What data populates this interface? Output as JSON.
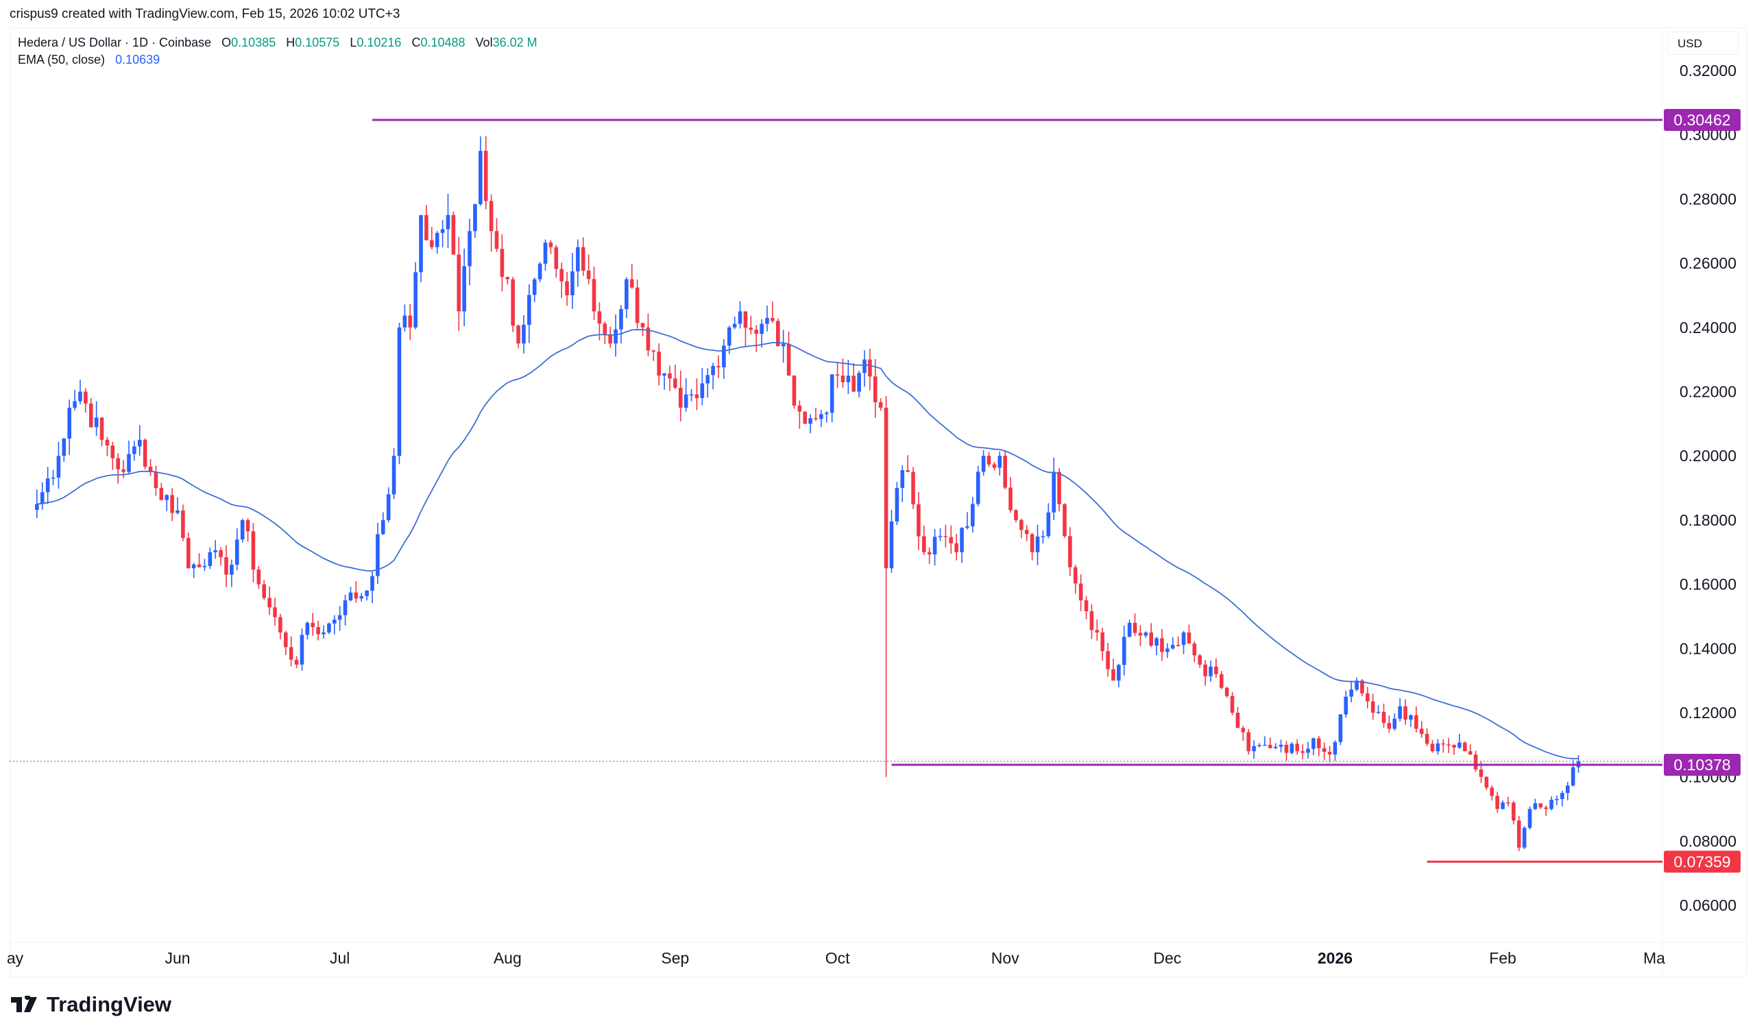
{
  "credit": "crispus9 created with TradingView.com, Feb 15, 2026 10:02 UTC+3",
  "legend": {
    "symbol": "Hedera / US Dollar · 1D · Coinbase",
    "o_label": "O",
    "o": "0.10385",
    "h_label": "H",
    "h": "0.10575",
    "l_label": "L",
    "l": "0.10216",
    "c_label": "C",
    "c": "0.10488",
    "vol_label": "Vol",
    "vol": "36.02 M",
    "ema_label": "EMA (50, close)",
    "ema": "0.10639"
  },
  "currency": "USD",
  "brand": "TradingView",
  "colors": {
    "up": "#2962ff",
    "down": "#f23645",
    "ema": "#3d6fd6",
    "level": "#9c27b0",
    "support": "#f23645"
  },
  "chart_data": {
    "type": "candlestick",
    "title": "Hedera / US Dollar · 1D · Coinbase",
    "ylim": [
      0.045,
      0.33
    ],
    "y_ticks": [
      "0.32000",
      "0.30000",
      "0.28000",
      "0.26000",
      "0.24000",
      "0.22000",
      "0.20000",
      "0.18000",
      "0.16000",
      "0.14000",
      "0.12000",
      "0.10000",
      "0.08000",
      "0.06000"
    ],
    "x_ticks": [
      {
        "label": "ay",
        "date": "2025-05-01"
      },
      {
        "label": "Jun",
        "date": "2025-06-01"
      },
      {
        "label": "Jul",
        "date": "2025-07-01"
      },
      {
        "label": "Aug",
        "date": "2025-08-01"
      },
      {
        "label": "Sep",
        "date": "2025-09-01"
      },
      {
        "label": "Oct",
        "date": "2025-10-01"
      },
      {
        "label": "Nov",
        "date": "2025-11-01"
      },
      {
        "label": "Dec",
        "date": "2025-12-01"
      },
      {
        "label": "2026",
        "date": "2026-01-01",
        "bold": true
      },
      {
        "label": "Feb",
        "date": "2026-02-01"
      },
      {
        "label": "Ma",
        "date": "2026-03-01"
      }
    ],
    "levels": [
      {
        "label": "0.30462",
        "value": 0.30462,
        "from": "2025-07-07",
        "color": "#9c27b0"
      },
      {
        "label": "0.10378",
        "value": 0.10378,
        "from": "2025-10-11",
        "color": "#9c27b0"
      },
      {
        "label": "0.07359",
        "value": 0.07359,
        "from": "2026-01-18",
        "color": "#f23645"
      }
    ],
    "current_price": 0.10488,
    "crash_low": {
      "date": "2025-10-10",
      "value": 0.1
    },
    "close_keypoints": [
      [
        "2025-05-06",
        0.185
      ],
      [
        "2025-05-10",
        0.2
      ],
      [
        "2025-05-12",
        0.215
      ],
      [
        "2025-05-14",
        0.22
      ],
      [
        "2025-05-18",
        0.205
      ],
      [
        "2025-05-22",
        0.195
      ],
      [
        "2025-05-25",
        0.205
      ],
      [
        "2025-05-28",
        0.19
      ],
      [
        "2025-06-01",
        0.183
      ],
      [
        "2025-06-03",
        0.165
      ],
      [
        "2025-06-07",
        0.17
      ],
      [
        "2025-06-10",
        0.163
      ],
      [
        "2025-06-13",
        0.18
      ],
      [
        "2025-06-16",
        0.16
      ],
      [
        "2025-06-20",
        0.145
      ],
      [
        "2025-06-23",
        0.135
      ],
      [
        "2025-06-25",
        0.148
      ],
      [
        "2025-06-28",
        0.145
      ],
      [
        "2025-07-02",
        0.155
      ],
      [
        "2025-07-06",
        0.158
      ],
      [
        "2025-07-09",
        0.18
      ],
      [
        "2025-07-11",
        0.2
      ],
      [
        "2025-07-12",
        0.24
      ],
      [
        "2025-07-14",
        0.24
      ],
      [
        "2025-07-16",
        0.275
      ],
      [
        "2025-07-18",
        0.265
      ],
      [
        "2025-07-21",
        0.275
      ],
      [
        "2025-07-23",
        0.245
      ],
      [
        "2025-07-25",
        0.27
      ],
      [
        "2025-07-27",
        0.295
      ],
      [
        "2025-07-29",
        0.27
      ],
      [
        "2025-08-01",
        0.255
      ],
      [
        "2025-08-03",
        0.235
      ],
      [
        "2025-08-06",
        0.255
      ],
      [
        "2025-08-09",
        0.265
      ],
      [
        "2025-08-12",
        0.25
      ],
      [
        "2025-08-14",
        0.265
      ],
      [
        "2025-08-17",
        0.245
      ],
      [
        "2025-08-20",
        0.235
      ],
      [
        "2025-08-23",
        0.255
      ],
      [
        "2025-08-26",
        0.24
      ],
      [
        "2025-08-29",
        0.225
      ],
      [
        "2025-09-02",
        0.215
      ],
      [
        "2025-09-05",
        0.218
      ],
      [
        "2025-09-08",
        0.228
      ],
      [
        "2025-09-11",
        0.24
      ],
      [
        "2025-09-13",
        0.245
      ],
      [
        "2025-09-16",
        0.238
      ],
      [
        "2025-09-19",
        0.242
      ],
      [
        "2025-09-22",
        0.225
      ],
      [
        "2025-09-25",
        0.21
      ],
      [
        "2025-09-28",
        0.213
      ],
      [
        "2025-10-01",
        0.225
      ],
      [
        "2025-10-04",
        0.22
      ],
      [
        "2025-10-06",
        0.23
      ],
      [
        "2025-10-09",
        0.215
      ],
      [
        "2025-10-10",
        0.165
      ],
      [
        "2025-10-12",
        0.19
      ],
      [
        "2025-10-14",
        0.195
      ],
      [
        "2025-10-17",
        0.17
      ],
      [
        "2025-10-20",
        0.175
      ],
      [
        "2025-10-23",
        0.17
      ],
      [
        "2025-10-26",
        0.185
      ],
      [
        "2025-10-28",
        0.2
      ],
      [
        "2025-10-31",
        0.2
      ],
      [
        "2025-11-03",
        0.18
      ],
      [
        "2025-11-06",
        0.17
      ],
      [
        "2025-11-08",
        0.175
      ],
      [
        "2025-11-10",
        0.195
      ],
      [
        "2025-11-12",
        0.175
      ],
      [
        "2025-11-15",
        0.155
      ],
      [
        "2025-11-18",
        0.145
      ],
      [
        "2025-11-21",
        0.13
      ],
      [
        "2025-11-24",
        0.148
      ],
      [
        "2025-11-27",
        0.145
      ],
      [
        "2025-12-01",
        0.14
      ],
      [
        "2025-12-04",
        0.145
      ],
      [
        "2025-12-07",
        0.135
      ],
      [
        "2025-12-10",
        0.132
      ],
      [
        "2025-12-13",
        0.12
      ],
      [
        "2025-12-16",
        0.108
      ],
      [
        "2025-12-19",
        0.11
      ],
      [
        "2025-12-22",
        0.11
      ],
      [
        "2025-12-25",
        0.108
      ],
      [
        "2025-12-28",
        0.112
      ],
      [
        "2025-12-31",
        0.107
      ],
      [
        "2026-01-03",
        0.125
      ],
      [
        "2026-01-05",
        0.13
      ],
      [
        "2026-01-08",
        0.12
      ],
      [
        "2026-01-11",
        0.115
      ],
      [
        "2026-01-13",
        0.122
      ],
      [
        "2026-01-16",
        0.115
      ],
      [
        "2026-01-19",
        0.108
      ],
      [
        "2026-01-22",
        0.11
      ],
      [
        "2026-01-25",
        0.108
      ],
      [
        "2026-01-28",
        0.1
      ],
      [
        "2026-01-31",
        0.09
      ],
      [
        "2026-02-02",
        0.092
      ],
      [
        "2026-02-04",
        0.078
      ],
      [
        "2026-02-06",
        0.09
      ],
      [
        "2026-02-09",
        0.09
      ],
      [
        "2026-02-12",
        0.095
      ],
      [
        "2026-02-14",
        0.103
      ],
      [
        "2026-02-15",
        0.10488
      ]
    ]
  }
}
